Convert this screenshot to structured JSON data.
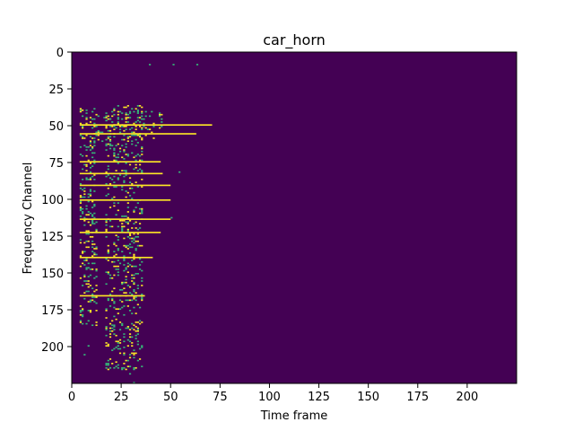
{
  "chart_data": {
    "type": "heatmap",
    "title": "car_horn",
    "xlabel": "Time frame",
    "ylabel": "Frequency Channel",
    "xlim": [
      0,
      225
    ],
    "ylim": [
      0,
      225
    ],
    "y_inverted": true,
    "grid": false,
    "legend": "none",
    "xticks": [
      0,
      25,
      50,
      75,
      100,
      125,
      150,
      175,
      200
    ],
    "yticks": [
      0,
      25,
      50,
      75,
      100,
      125,
      150,
      175,
      200
    ],
    "colors": {
      "background": "#440154",
      "active": "#fde725",
      "mid": "#35b779"
    },
    "lines": [
      {
        "y": 49,
        "x_start": 4,
        "x_end": 71
      },
      {
        "y": 55,
        "x_start": 4,
        "x_end": 63
      },
      {
        "y": 74,
        "x_start": 4,
        "x_end": 45
      },
      {
        "y": 82,
        "x_start": 4,
        "x_end": 46
      },
      {
        "y": 90,
        "x_start": 4,
        "x_end": 50
      },
      {
        "y": 100,
        "x_start": 4,
        "x_end": 50
      },
      {
        "y": 113,
        "x_start": 4,
        "x_end": 50
      },
      {
        "y": 122,
        "x_start": 4,
        "x_end": 45
      },
      {
        "y": 139,
        "x_start": 4,
        "x_end": 41
      },
      {
        "y": 165,
        "x_start": 4,
        "x_end": 37
      }
    ],
    "isolated_points": [
      {
        "x": 39,
        "y": 8
      },
      {
        "x": 51,
        "y": 8
      },
      {
        "x": 63,
        "y": 8
      },
      {
        "x": 54,
        "y": 81
      },
      {
        "x": 50,
        "y": 112
      },
      {
        "x": 6,
        "y": 205
      },
      {
        "x": 8,
        "y": 199
      },
      {
        "x": 23,
        "y": 212
      },
      {
        "x": 29,
        "y": 218
      },
      {
        "x": 31,
        "y": 224
      }
    ],
    "cluster_regions": [
      {
        "x_range": [
          4,
          12
        ],
        "y_range": [
          38,
          185
        ],
        "density": 0.35
      },
      {
        "x_range": [
          17,
          35
        ],
        "y_range": [
          36,
          215
        ],
        "density": 0.3
      },
      {
        "x_range": [
          12,
          45
        ],
        "y_range": [
          40,
          60
        ],
        "density": 0.25
      }
    ]
  }
}
